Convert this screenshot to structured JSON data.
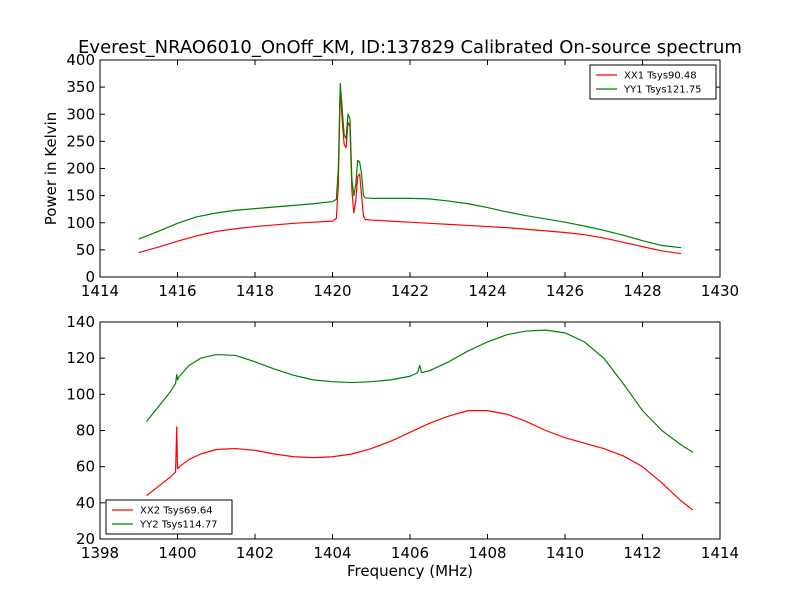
{
  "figure_title": "Everest_NRAO6010_OnOff_KM, ID:137829 Calibrated On-source spectrum",
  "chart_data": [
    {
      "type": "line",
      "title": "Everest_NRAO6010_OnOff_KM, ID:137829 Calibrated On-source spectrum",
      "xlabel": "",
      "ylabel": "Power in Kelvin",
      "xlim": [
        1414,
        1430
      ],
      "ylim": [
        0,
        400
      ],
      "xticks": [
        1414,
        1416,
        1418,
        1420,
        1422,
        1424,
        1426,
        1428,
        1430
      ],
      "yticks": [
        0,
        50,
        100,
        150,
        200,
        250,
        300,
        350,
        400
      ],
      "grid": false,
      "legend": "top-right",
      "series": [
        {
          "name": "XX1 Tsys90.48",
          "color": "#ff0000",
          "x": [
            1415.0,
            1415.5,
            1416.0,
            1416.5,
            1417.0,
            1417.5,
            1418.0,
            1418.5,
            1419.0,
            1419.5,
            1420.0,
            1420.1,
            1420.15,
            1420.2,
            1420.25,
            1420.3,
            1420.35,
            1420.4,
            1420.45,
            1420.5,
            1420.55,
            1420.6,
            1420.65,
            1420.7,
            1420.75,
            1420.8,
            1420.85,
            1421.0,
            1421.5,
            1422.0,
            1422.5,
            1423.0,
            1423.5,
            1424.0,
            1424.5,
            1425.0,
            1425.5,
            1426.0,
            1426.5,
            1427.0,
            1427.5,
            1428.0,
            1428.5,
            1429.0
          ],
          "y": [
            45,
            55,
            66,
            76,
            84,
            89,
            93,
            96,
            99,
            101,
            103,
            108,
            170,
            345,
            290,
            245,
            238,
            285,
            278,
            160,
            118,
            140,
            185,
            190,
            150,
            112,
            106,
            105,
            103,
            101,
            99,
            97,
            95,
            93,
            91,
            88,
            85,
            82,
            78,
            72,
            64,
            56,
            48,
            43
          ]
        },
        {
          "name": "YY1 Tsys121.75",
          "color": "#008000",
          "x": [
            1415.0,
            1415.5,
            1416.0,
            1416.5,
            1417.0,
            1417.5,
            1418.0,
            1418.5,
            1419.0,
            1419.5,
            1420.0,
            1420.1,
            1420.15,
            1420.2,
            1420.25,
            1420.3,
            1420.35,
            1420.4,
            1420.45,
            1420.5,
            1420.55,
            1420.6,
            1420.65,
            1420.7,
            1420.75,
            1420.8,
            1420.85,
            1421.0,
            1421.5,
            1422.0,
            1422.5,
            1423.0,
            1423.5,
            1424.0,
            1424.5,
            1425.0,
            1425.5,
            1426.0,
            1426.5,
            1427.0,
            1427.5,
            1428.0,
            1428.5,
            1429.0
          ],
          "y": [
            70,
            84,
            99,
            111,
            118,
            123,
            126,
            129,
            132,
            135,
            139,
            143,
            200,
            357,
            310,
            262,
            255,
            300,
            292,
            180,
            150,
            170,
            215,
            212,
            190,
            150,
            146,
            145,
            145,
            145,
            144,
            140,
            135,
            128,
            120,
            113,
            107,
            101,
            94,
            86,
            77,
            67,
            58,
            54
          ]
        }
      ]
    },
    {
      "type": "line",
      "title": "",
      "xlabel": "Frequency (MHz)",
      "ylabel": "",
      "xlim": [
        1398,
        1414
      ],
      "ylim": [
        20,
        140
      ],
      "xticks": [
        1398,
        1400,
        1402,
        1404,
        1406,
        1408,
        1410,
        1412,
        1414
      ],
      "yticks": [
        20,
        40,
        60,
        80,
        100,
        120,
        140
      ],
      "grid": false,
      "legend": "bottom-left",
      "series": [
        {
          "name": "XX2 Tsys69.64",
          "color": "#ff0000",
          "x": [
            1399.2,
            1399.5,
            1399.8,
            1399.95,
            1399.98,
            1400.0,
            1400.02,
            1400.05,
            1400.3,
            1400.6,
            1401.0,
            1401.5,
            1402.0,
            1402.5,
            1403.0,
            1403.5,
            1404.0,
            1404.5,
            1405.0,
            1405.5,
            1406.0,
            1406.5,
            1407.0,
            1407.5,
            1408.0,
            1408.5,
            1409.0,
            1409.5,
            1410.0,
            1410.5,
            1411.0,
            1411.5,
            1412.0,
            1412.5,
            1413.0,
            1413.3
          ],
          "y": [
            44,
            49,
            54,
            57,
            82,
            59,
            59,
            60,
            64,
            67,
            69.5,
            70,
            69,
            67,
            65.5,
            65,
            65.5,
            67,
            70,
            74,
            79,
            84,
            88,
            91,
            91,
            89,
            85,
            80,
            76,
            73,
            70,
            66,
            60,
            51,
            41,
            36
          ]
        },
        {
          "name": "YY2 Tsys114.77",
          "color": "#008000",
          "x": [
            1399.2,
            1399.5,
            1399.8,
            1399.95,
            1399.98,
            1400.0,
            1400.02,
            1400.05,
            1400.3,
            1400.6,
            1401.0,
            1401.5,
            1402.0,
            1402.5,
            1403.0,
            1403.5,
            1404.0,
            1404.5,
            1405.0,
            1405.5,
            1406.0,
            1406.2,
            1406.25,
            1406.3,
            1406.5,
            1407.0,
            1407.5,
            1408.0,
            1408.5,
            1409.0,
            1409.5,
            1410.0,
            1410.5,
            1411.0,
            1411.5,
            1412.0,
            1412.5,
            1413.0,
            1413.3
          ],
          "y": [
            85,
            93,
            101,
            106,
            111,
            108,
            109,
            110,
            116,
            120,
            122,
            121.5,
            118,
            114,
            110.5,
            108,
            107,
            106.5,
            107,
            108,
            110,
            112,
            116,
            112,
            113,
            118,
            124,
            129,
            133,
            135,
            135.5,
            134,
            129,
            120,
            106,
            91,
            80,
            72,
            68
          ]
        }
      ]
    }
  ]
}
